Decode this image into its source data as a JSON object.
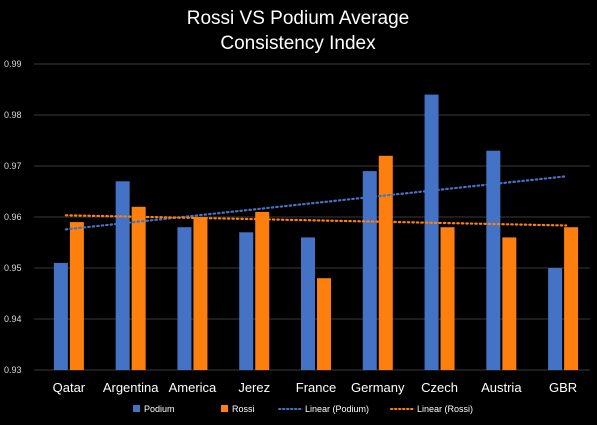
{
  "colors": {
    "background": "#000000",
    "podium": "#4472C4",
    "rossi": "#FF7F0E",
    "grid": "#3a3a3a",
    "text": "#ffffff"
  },
  "chart_data": {
    "type": "bar",
    "title": "Rossi VS Podium Average",
    "subtitle": "Consistency Index",
    "xlabel": "",
    "ylabel": "",
    "ylim": [
      0.93,
      0.99
    ],
    "yticks": [
      "0.93",
      "0.94",
      "0.95",
      "0.96",
      "0.97",
      "0.98",
      "0.99"
    ],
    "grid": true,
    "legend_position": "bottom",
    "categories": [
      "Qatar",
      "Argentina",
      "America",
      "Jerez",
      "France",
      "Germany",
      "Czech",
      "Austria",
      "GBR"
    ],
    "series": [
      {
        "name": "Podium",
        "color": "#4472C4",
        "values": [
          0.951,
          0.967,
          0.958,
          0.957,
          0.956,
          0.969,
          0.984,
          0.973,
          0.95
        ]
      },
      {
        "name": "Rossi",
        "color": "#FF7F0E",
        "values": [
          0.959,
          0.962,
          0.96,
          0.961,
          0.948,
          0.972,
          0.958,
          0.956,
          0.958
        ]
      }
    ],
    "trendlines": [
      {
        "name": "Linear (Podium)",
        "of": "Podium",
        "color": "#4472C4",
        "style": "dotted"
      },
      {
        "name": "Linear (Rossi)",
        "of": "Rossi",
        "color": "#FF7F0E",
        "style": "dotted"
      }
    ]
  }
}
